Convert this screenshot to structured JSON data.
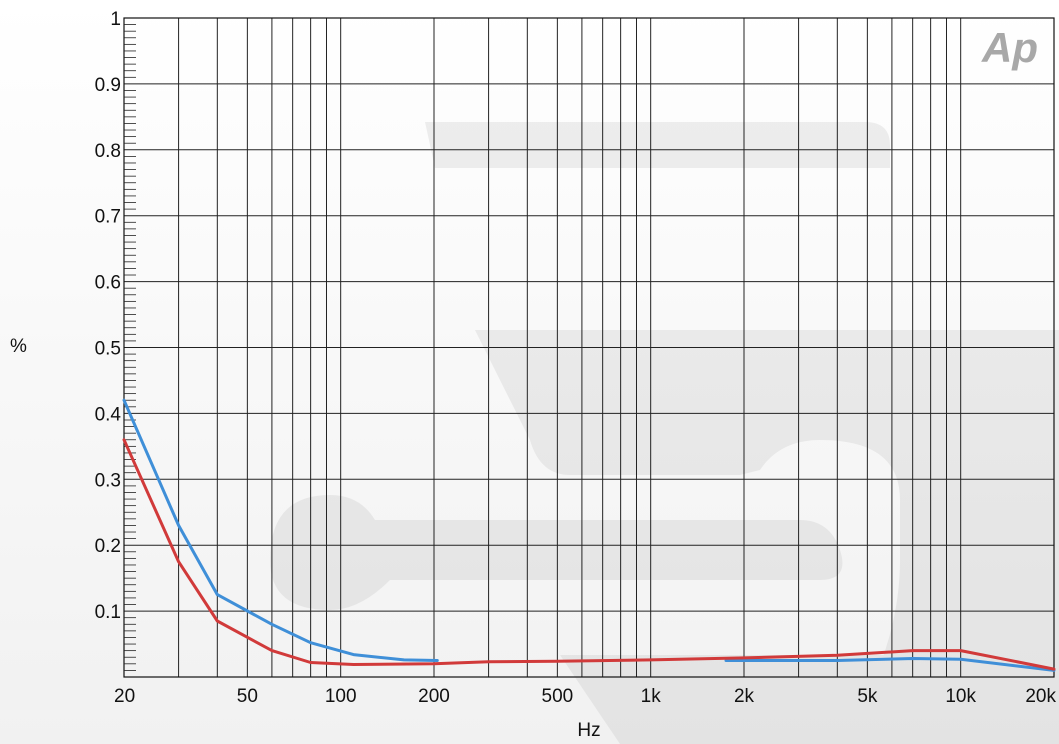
{
  "logo": "Ap",
  "colors": {
    "series_blue": "#3f8fd8",
    "series_red": "#d13a3a",
    "grid": "#222222"
  },
  "chart_data": {
    "type": "line",
    "xlabel": "Hz",
    "ylabel": "%",
    "xscale": "log",
    "xlim": [
      20,
      20000
    ],
    "ylim": [
      0,
      1
    ],
    "grid": true,
    "x_ticks": [
      {
        "value": 20,
        "label": "20"
      },
      {
        "value": 50,
        "label": "50"
      },
      {
        "value": 100,
        "label": "100"
      },
      {
        "value": 200,
        "label": "200"
      },
      {
        "value": 500,
        "label": "500"
      },
      {
        "value": 1000,
        "label": "1k"
      },
      {
        "value": 2000,
        "label": "2k"
      },
      {
        "value": 5000,
        "label": "5k"
      },
      {
        "value": 10000,
        "label": "10k"
      },
      {
        "value": 20000,
        "label": "20k"
      }
    ],
    "y_ticks": [
      {
        "value": 0.1,
        "label": "0.1"
      },
      {
        "value": 0.2,
        "label": "0.2"
      },
      {
        "value": 0.3,
        "label": "0.3"
      },
      {
        "value": 0.4,
        "label": "0.4"
      },
      {
        "value": 0.5,
        "label": "0.5"
      },
      {
        "value": 0.6,
        "label": "0.6"
      },
      {
        "value": 0.7,
        "label": "0.7"
      },
      {
        "value": 0.8,
        "label": "0.8"
      },
      {
        "value": 0.9,
        "label": "0.9"
      },
      {
        "value": 1,
        "label": "1"
      }
    ],
    "series": [
      {
        "color": "#3f8fd8",
        "segments": [
          [
            [
              20,
              0.42
            ],
            [
              30,
              0.23
            ],
            [
              40,
              0.125
            ],
            [
              60,
              0.08
            ],
            [
              80,
              0.052
            ],
            [
              110,
              0.034
            ],
            [
              160,
              0.026
            ],
            [
              205,
              0.025
            ]
          ],
          [
            [
              1750,
              0.025
            ],
            [
              4000,
              0.025
            ],
            [
              7000,
              0.028
            ],
            [
              10000,
              0.027
            ],
            [
              20000,
              0.01
            ]
          ]
        ]
      },
      {
        "color": "#d13a3a",
        "segments": [
          [
            [
              20,
              0.36
            ],
            [
              30,
              0.175
            ],
            [
              40,
              0.085
            ],
            [
              60,
              0.04
            ],
            [
              80,
              0.022
            ],
            [
              110,
              0.019
            ],
            [
              200,
              0.02
            ],
            [
              300,
              0.023
            ],
            [
              500,
              0.024
            ],
            [
              1000,
              0.026
            ],
            [
              2000,
              0.029
            ],
            [
              4000,
              0.033
            ],
            [
              7000,
              0.04
            ],
            [
              10000,
              0.04
            ],
            [
              20000,
              0.012
            ]
          ]
        ]
      }
    ]
  }
}
